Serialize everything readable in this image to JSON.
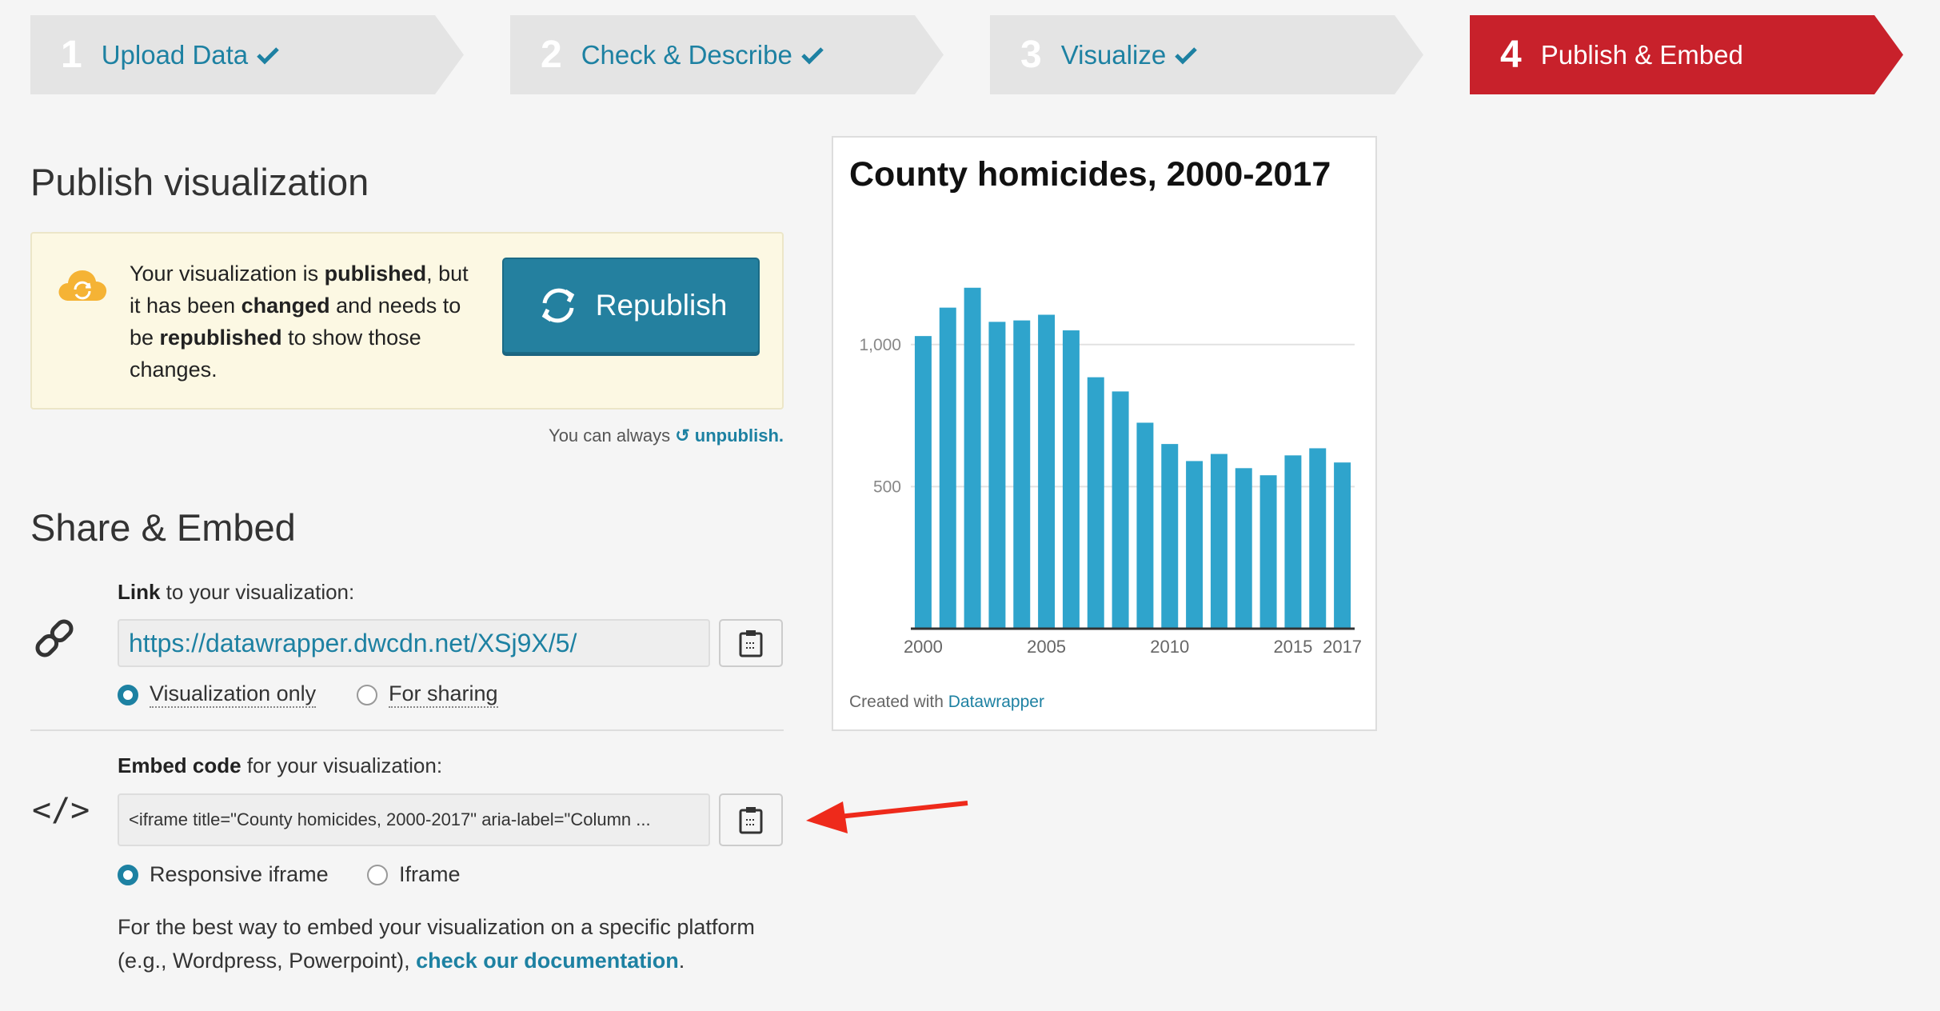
{
  "steps": [
    {
      "num": "1",
      "label": "Upload Data",
      "done": true
    },
    {
      "num": "2",
      "label": "Check & Describe",
      "done": true
    },
    {
      "num": "3",
      "label": "Visualize",
      "done": true
    },
    {
      "num": "4",
      "label": "Publish & Embed",
      "done": false
    }
  ],
  "publish": {
    "heading": "Publish visualization",
    "notice": {
      "t1": "Your visualization is ",
      "b1": "published",
      "t2": ", but it has been ",
      "b2": "changed",
      "t3": " and needs to be ",
      "b3": "republished",
      "t4": " to show those changes."
    },
    "republish_label": "Republish",
    "unpublish_prefix": "You can always ",
    "unpublish_link": "unpublish."
  },
  "share": {
    "heading": "Share & Embed",
    "link_label_bold": "Link",
    "link_label_rest": " to your visualization:",
    "link_url": "https://datawrapper.dwcdn.net/XSj9X/5/",
    "link_options": [
      "Visualization only",
      "For sharing"
    ],
    "embed_label_bold": "Embed code",
    "embed_label_rest": " for your visualization:",
    "embed_code": "<iframe title=\"County homicides, 2000-2017\" aria-label=\"Column ...",
    "embed_options": [
      "Responsive iframe",
      "Iframe"
    ],
    "doc_text": "For the best way to embed your visualization on a specific platform (e.g., Wordpress, Powerpoint), ",
    "doc_link": "check our documentation",
    "doc_end": "."
  },
  "credit": {
    "prefix": "Created with ",
    "link": "Datawrapper"
  },
  "colors": {
    "accent": "#1d81a2",
    "active_step": "#c8212b",
    "bar": "#2fa4cc"
  },
  "chart_data": {
    "type": "bar",
    "title": "County homicides, 2000-2017",
    "xlabel": "",
    "ylabel": "",
    "categories": [
      "2000",
      "2001",
      "2002",
      "2003",
      "2004",
      "2005",
      "2006",
      "2007",
      "2008",
      "2009",
      "2010",
      "2011",
      "2012",
      "2013",
      "2014",
      "2015",
      "2016",
      "2017"
    ],
    "values": [
      1030,
      1130,
      1200,
      1080,
      1085,
      1105,
      1050,
      885,
      835,
      725,
      650,
      590,
      615,
      565,
      540,
      610,
      635,
      585
    ],
    "yticks": [
      "1,000",
      "500"
    ],
    "ytick_values": [
      1000,
      500
    ],
    "xtick_labels": [
      "2000",
      "2005",
      "2010",
      "2015",
      "2017"
    ],
    "ylim": [
      0,
      1250
    ],
    "grid": true
  }
}
